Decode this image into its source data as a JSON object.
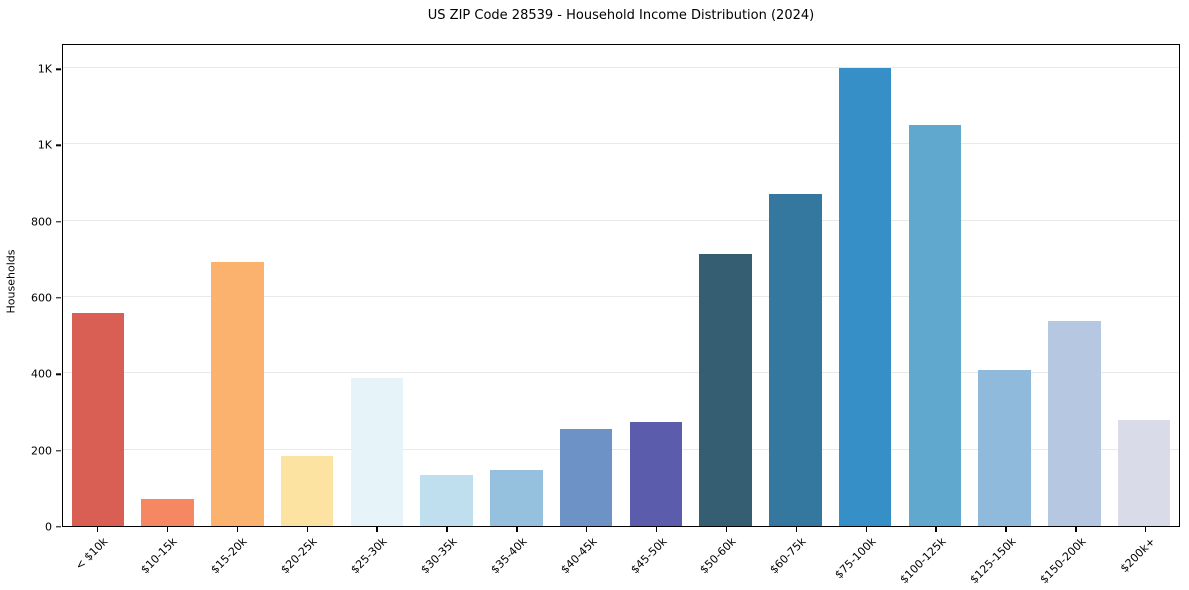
{
  "title": "US ZIP Code 28539 - Household Income Distribution (2024)",
  "chart_data": {
    "type": "bar",
    "title": "US ZIP Code 28539 - Household Income Distribution (2024)",
    "xlabel": "",
    "ylabel": "Households",
    "categories": [
      "< $10k",
      "$10-15k",
      "$15-20k",
      "$20-25k",
      "$25-30k",
      "$30-35k",
      "$35-40k",
      "$40-45k",
      "$45-50k",
      "$50-60k",
      "$60-75k",
      "$75-100k",
      "$100-125k",
      "$125-150k",
      "$150-200k",
      "$200k+"
    ],
    "values": [
      560,
      70,
      695,
      185,
      390,
      135,
      148,
      255,
      275,
      715,
      875,
      1205,
      1055,
      410,
      540,
      280
    ],
    "bar_colors": [
      "#d95f55",
      "#f58762",
      "#fab26e",
      "#fce3a2",
      "#e6f3f8",
      "#c0dfee",
      "#95c0de",
      "#6d92c5",
      "#5b5cab",
      "#355e73",
      "#35789f",
      "#368fc6",
      "#60a8ce",
      "#90badb",
      "#b6c8e1",
      "#d9dbe9"
    ],
    "ylim": [
      0,
      1266
    ],
    "yticks": [
      {
        "value": 0,
        "label": "0"
      },
      {
        "value": 200,
        "label": "200"
      },
      {
        "value": 400,
        "label": "400"
      },
      {
        "value": 600,
        "label": "600"
      },
      {
        "value": 800,
        "label": "800"
      },
      {
        "value": 1000,
        "label": "1K"
      },
      {
        "value": 1200,
        "label": "1K"
      }
    ],
    "grid": "horizontal",
    "legend": "none",
    "background_color": "#ffffff",
    "grid_color": "#e9e9e9",
    "spine_color": "#000000"
  }
}
